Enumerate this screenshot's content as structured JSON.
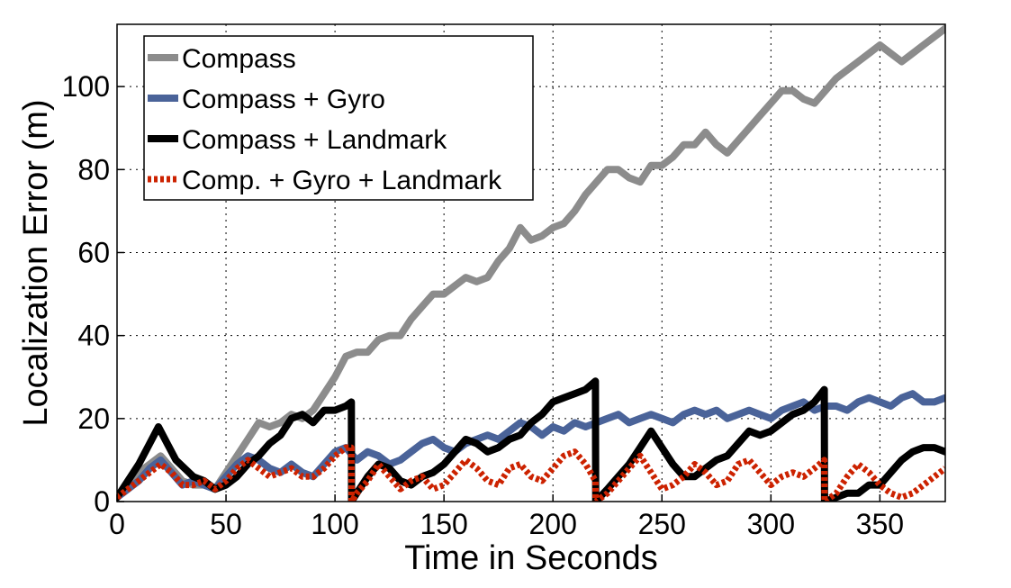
{
  "chart_data": {
    "type": "line",
    "title": "",
    "xlabel": "Time in Seconds",
    "ylabel": "Localization Error (m)",
    "xlim": [
      0,
      380
    ],
    "ylim": [
      0,
      115
    ],
    "xticks": [
      0,
      50,
      100,
      150,
      200,
      250,
      300,
      350
    ],
    "yticks": [
      0,
      20,
      40,
      60,
      80,
      100
    ],
    "grid": true,
    "legend_position": "top-left",
    "series": [
      {
        "name": "Compass",
        "color": "#8c8c8c",
        "style": "solid",
        "x": [
          0,
          5,
          10,
          15,
          20,
          25,
          30,
          35,
          40,
          45,
          50,
          55,
          60,
          65,
          70,
          75,
          80,
          85,
          90,
          95,
          100,
          105,
          110,
          115,
          120,
          125,
          130,
          135,
          140,
          145,
          150,
          155,
          160,
          165,
          170,
          175,
          180,
          185,
          190,
          195,
          200,
          205,
          210,
          215,
          220,
          225,
          230,
          235,
          240,
          245,
          250,
          255,
          260,
          265,
          270,
          275,
          280,
          285,
          290,
          295,
          300,
          305,
          310,
          315,
          320,
          325,
          330,
          335,
          340,
          345,
          350,
          355,
          360,
          365,
          370,
          375,
          380
        ],
        "y": [
          1,
          4,
          7,
          9,
          11,
          8,
          5,
          4,
          4,
          3,
          7,
          11,
          15,
          19,
          18,
          19,
          21,
          20,
          22,
          26,
          30,
          35,
          36,
          36,
          39,
          40,
          40,
          44,
          47,
          50,
          50,
          52,
          54,
          53,
          54,
          58,
          61,
          66,
          63,
          64,
          66,
          67,
          70,
          74,
          77,
          80,
          80,
          78,
          77,
          81,
          81,
          83,
          86,
          86,
          89,
          86,
          84,
          87,
          90,
          93,
          96,
          99,
          99,
          97,
          96,
          99,
          102,
          104,
          106,
          108,
          110,
          108,
          106,
          108,
          110,
          112,
          114
        ]
      },
      {
        "name": "Compass + Gyro",
        "color": "#4a6399",
        "style": "solid",
        "x": [
          0,
          5,
          10,
          15,
          20,
          25,
          30,
          35,
          40,
          45,
          50,
          55,
          60,
          65,
          70,
          75,
          80,
          85,
          90,
          95,
          100,
          105,
          110,
          115,
          120,
          125,
          130,
          135,
          140,
          145,
          150,
          155,
          160,
          165,
          170,
          175,
          180,
          185,
          190,
          195,
          200,
          205,
          210,
          215,
          220,
          225,
          230,
          235,
          240,
          245,
          250,
          255,
          260,
          265,
          270,
          275,
          280,
          285,
          290,
          295,
          300,
          305,
          310,
          315,
          320,
          325,
          330,
          335,
          340,
          345,
          350,
          355,
          360,
          365,
          370,
          375,
          380
        ],
        "y": [
          1,
          3,
          5,
          8,
          10,
          7,
          4,
          5,
          4,
          3,
          6,
          9,
          11,
          10,
          8,
          7,
          9,
          7,
          6,
          9,
          12,
          13,
          10,
          12,
          11,
          9,
          10,
          12,
          14,
          15,
          13,
          12,
          14,
          15,
          16,
          15,
          17,
          19,
          18,
          16,
          18,
          17,
          19,
          18,
          19,
          20,
          21,
          19,
          20,
          21,
          20,
          19,
          21,
          22,
          21,
          22,
          20,
          21,
          22,
          21,
          20,
          22,
          23,
          24,
          22,
          23,
          23,
          22,
          24,
          25,
          24,
          23,
          25,
          26,
          24,
          24,
          25
        ]
      },
      {
        "name": "Compass + Landmark",
        "color": "#000000",
        "style": "solid",
        "x": [
          0,
          5,
          10,
          15,
          19,
          23,
          27,
          31,
          35,
          40,
          45,
          50,
          55,
          60,
          65,
          70,
          75,
          80,
          85,
          90,
          95,
          100,
          105,
          107.5,
          107.6,
          110,
          115,
          120,
          125,
          130,
          135,
          140,
          145,
          150,
          155,
          160,
          165,
          170,
          175,
          180,
          185,
          190,
          195,
          200,
          205,
          210,
          215,
          219.5,
          219.6,
          225,
          230,
          235,
          240,
          245,
          250,
          255,
          260,
          265,
          270,
          275,
          280,
          285,
          290,
          295,
          300,
          305,
          310,
          315,
          320,
          324.5,
          324.6,
          330,
          335,
          340,
          345,
          350,
          355,
          360,
          365,
          370,
          375,
          380
        ],
        "y": [
          1,
          5,
          9,
          14,
          18,
          14,
          10,
          8,
          6,
          5,
          3,
          4,
          6,
          9,
          11,
          14,
          16,
          20,
          21,
          19,
          22,
          22,
          23,
          24,
          0,
          2,
          6,
          9,
          8,
          5,
          4,
          6,
          7,
          9,
          12,
          15,
          14,
          12,
          13,
          15,
          16,
          19,
          21,
          24,
          25,
          26,
          27,
          29,
          0,
          3,
          6,
          9,
          13,
          17,
          13,
          9,
          6,
          6,
          8,
          10,
          11,
          14,
          17,
          16,
          17,
          19,
          21,
          22,
          24,
          27,
          0,
          1,
          2,
          2,
          4,
          4,
          7,
          10,
          12,
          13,
          13,
          12
        ]
      },
      {
        "name": "Comp. + Gyro + Landmark",
        "color": "#cc2200",
        "style": "dotted",
        "x": [
          0,
          5,
          10,
          15,
          20,
          25,
          30,
          35,
          40,
          45,
          50,
          55,
          60,
          65,
          70,
          75,
          80,
          85,
          90,
          95,
          100,
          105,
          107.5,
          107.6,
          110,
          115,
          120,
          125,
          130,
          135,
          140,
          145,
          150,
          155,
          160,
          165,
          170,
          175,
          180,
          185,
          190,
          195,
          200,
          205,
          210,
          215,
          219.5,
          219.6,
          225,
          230,
          235,
          240,
          245,
          250,
          255,
          260,
          265,
          270,
          275,
          280,
          285,
          290,
          295,
          300,
          305,
          310,
          315,
          320,
          324.5,
          324.6,
          330,
          335,
          340,
          345,
          350,
          355,
          360,
          365,
          370,
          375,
          380
        ],
        "y": [
          1,
          3,
          5,
          7,
          9,
          7,
          4,
          4,
          5,
          3,
          5,
          8,
          10,
          8,
          6,
          7,
          8,
          6,
          6,
          8,
          11,
          13,
          13,
          0,
          2,
          5,
          9,
          6,
          3,
          5,
          6,
          3,
          4,
          7,
          10,
          8,
          5,
          4,
          8,
          9,
          6,
          5,
          8,
          11,
          12,
          9,
          5,
          0,
          2,
          5,
          8,
          11,
          7,
          3,
          4,
          6,
          9,
          7,
          4,
          5,
          9,
          10,
          7,
          4,
          6,
          7,
          6,
          8,
          10,
          0,
          2,
          6,
          9,
          7,
          4,
          2,
          1,
          2,
          4,
          6,
          8
        ]
      }
    ]
  }
}
